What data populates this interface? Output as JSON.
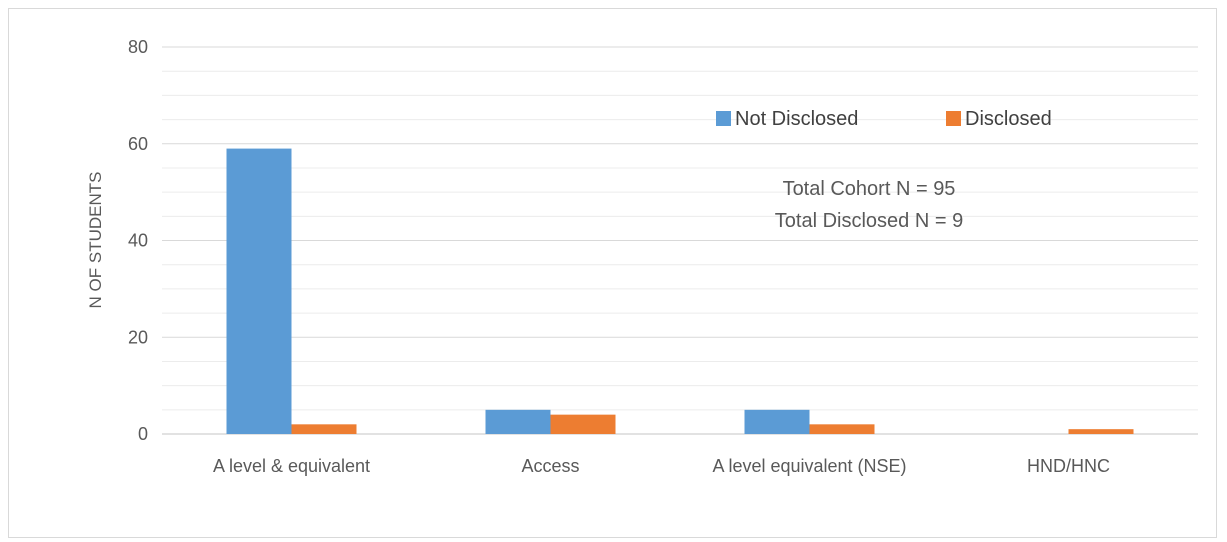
{
  "chart_data": {
    "type": "bar",
    "title": "",
    "xlabel": "",
    "ylabel": "N OF STUDENTS",
    "ylim": [
      0,
      80
    ],
    "yticks": [
      0,
      20,
      40,
      60,
      80
    ],
    "minor_gridline_step": 5,
    "grid": true,
    "legend_position": "top-right",
    "categories": [
      "A level & equivalent",
      "Access",
      "A level equivalent (NSE)",
      "HND/HNC"
    ],
    "series": [
      {
        "name": "Not Disclosed",
        "color": "#5B9BD5",
        "values": [
          59,
          5,
          5,
          0
        ]
      },
      {
        "name": "Disclosed",
        "color": "#ED7D31",
        "values": [
          2,
          4,
          2,
          1
        ]
      }
    ],
    "annotations": [
      "Total Cohort N = 95",
      "Total Disclosed N = 9"
    ]
  }
}
